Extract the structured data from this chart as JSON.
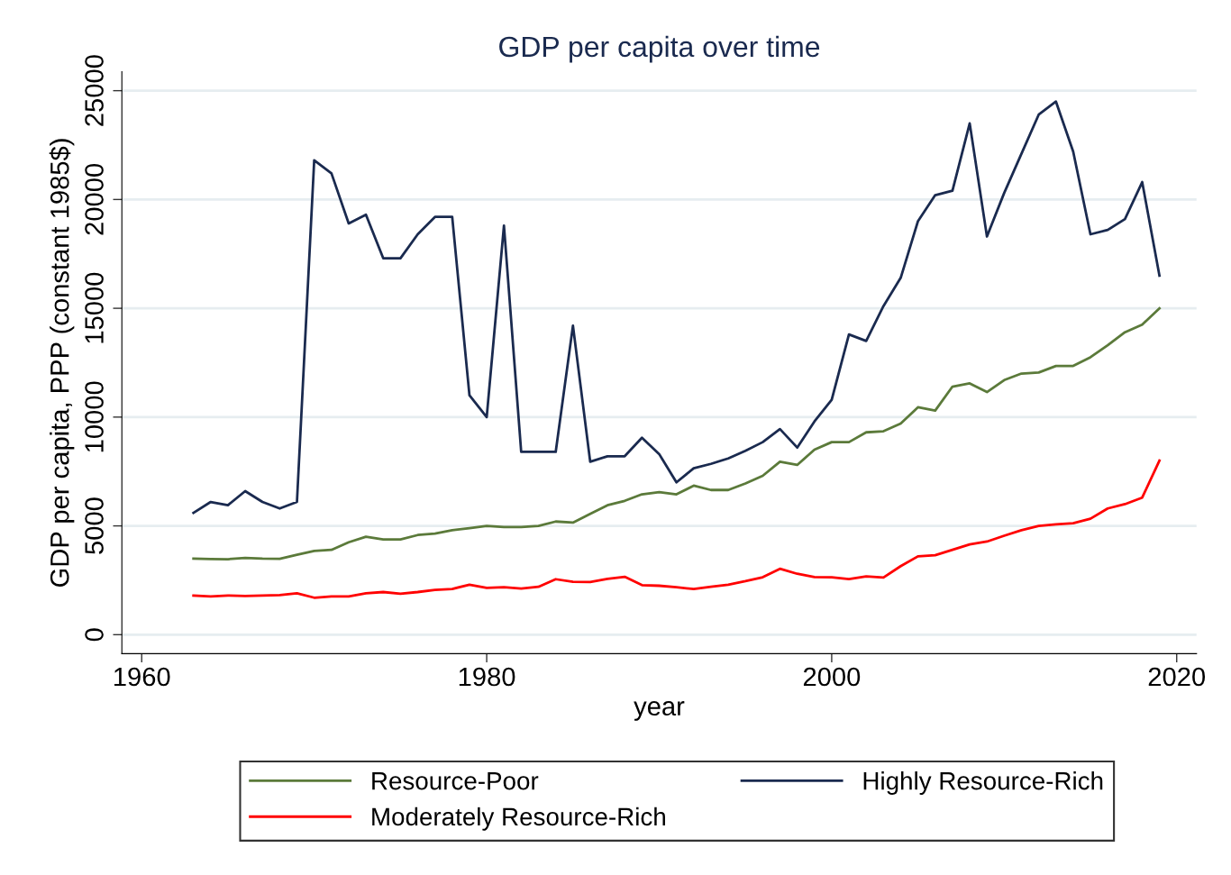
{
  "chart_data": {
    "type": "line",
    "title": "GDP per capita over time",
    "xlabel": "year",
    "ylabel": "GDP per capita, PPP (constant 1985$)",
    "x": [
      1963,
      1964,
      1965,
      1966,
      1967,
      1968,
      1969,
      1970,
      1971,
      1972,
      1973,
      1974,
      1975,
      1976,
      1977,
      1978,
      1979,
      1980,
      1981,
      1982,
      1983,
      1984,
      1985,
      1986,
      1987,
      1988,
      1989,
      1990,
      1991,
      1992,
      1993,
      1994,
      1995,
      1996,
      1997,
      1998,
      1999,
      2000,
      2001,
      2002,
      2003,
      2004,
      2005,
      2006,
      2007,
      2008,
      2009,
      2010,
      2011,
      2012,
      2013,
      2014,
      2015,
      2016,
      2017,
      2018,
      2019
    ],
    "series": [
      {
        "name": "Resource-Poor",
        "color": "#5b7a3a",
        "values": [
          3500,
          3480,
          3470,
          3530,
          3500,
          3490,
          3670,
          3850,
          3900,
          4250,
          4500,
          4380,
          4380,
          4580,
          4650,
          4800,
          4900,
          5000,
          4950,
          4950,
          5000,
          5200,
          5150,
          5550,
          5950,
          6150,
          6450,
          6550,
          6450,
          6850,
          6650,
          6650,
          6950,
          7300,
          7950,
          7800,
          8500,
          8850,
          8850,
          9300,
          9350,
          9700,
          10450,
          10300,
          11400,
          11550,
          11150,
          11700,
          12000,
          12050,
          12350,
          12350,
          12750,
          13300,
          13900,
          14250,
          15000
        ]
      },
      {
        "name": "Moderately Resource-Rich",
        "color": "#ff0000",
        "values": [
          1800,
          1760,
          1800,
          1780,
          1800,
          1820,
          1900,
          1700,
          1760,
          1760,
          1900,
          1960,
          1880,
          1960,
          2060,
          2100,
          2300,
          2150,
          2180,
          2120,
          2200,
          2550,
          2430,
          2420,
          2570,
          2660,
          2280,
          2250,
          2180,
          2100,
          2200,
          2300,
          2460,
          2640,
          3030,
          2800,
          2650,
          2640,
          2560,
          2680,
          2630,
          3150,
          3600,
          3650,
          3900,
          4150,
          4280,
          4550,
          4800,
          5000,
          5070,
          5120,
          5330,
          5800,
          6000,
          6300,
          8000
        ]
      },
      {
        "name": "Highly Resource-Rich",
        "color": "#1a2a4f",
        "values": [
          5600,
          6100,
          5950,
          6600,
          6100,
          5800,
          6100,
          21800,
          21200,
          18900,
          19300,
          17300,
          17300,
          18400,
          19200,
          19200,
          11000,
          10000,
          18800,
          8400,
          8400,
          8400,
          14200,
          7950,
          8200,
          8200,
          9050,
          8300,
          7000,
          7650,
          7850,
          8100,
          8450,
          8850,
          9450,
          8600,
          9800,
          10800,
          13800,
          13500,
          15100,
          16400,
          19000,
          20200,
          20400,
          23500,
          18300,
          20300,
          22100,
          23900,
          24500,
          22200,
          18400,
          18600,
          19100,
          20800,
          16500
        ]
      }
    ],
    "xlim": [
      1958.85,
      2021.15
    ],
    "xticks": [
      1960,
      1980,
      2000,
      2020
    ],
    "ylim": [
      -870,
      25870
    ],
    "yticks": [
      0,
      5000,
      10000,
      15000,
      20000,
      25000
    ],
    "grid": "y",
    "legend": "bottom",
    "marker": "none",
    "line_style": "solid"
  }
}
